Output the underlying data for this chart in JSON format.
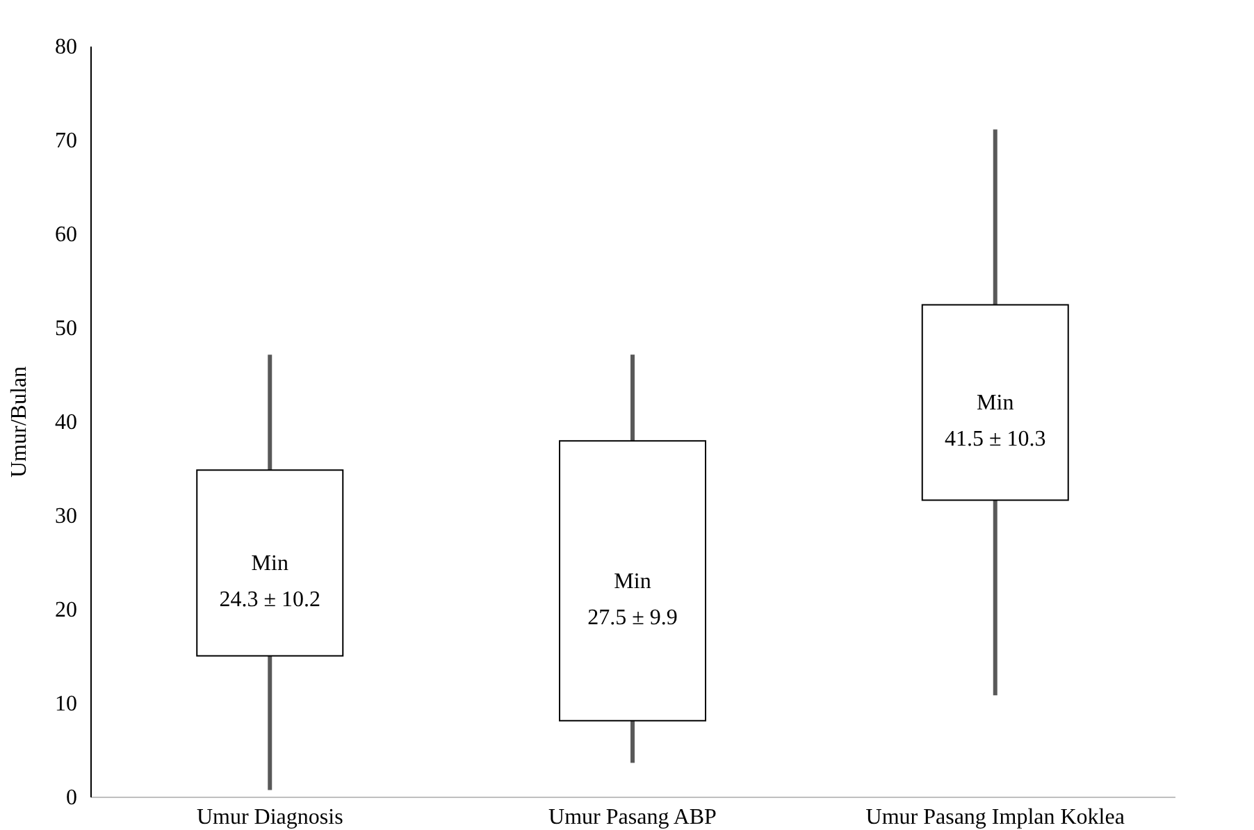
{
  "chart_data": {
    "type": "candlestick",
    "ylabel": "Umur/Bulan",
    "categories": [
      "Umur Diagnosis",
      "Umur Pasang ABP",
      "Umur Pasang Implan Koklea"
    ],
    "ohlc": [
      [
        15.0,
        47.1,
        0.7,
        34.8
      ],
      [
        8.1,
        47.1,
        3.6,
        37.9
      ],
      [
        31.6,
        71.1,
        10.8,
        52.4
      ]
    ],
    "colors": [
      "#ffffff",
      "#ffffff",
      "#ffffff"
    ],
    "ylim": [
      0,
      80
    ],
    "yticks": [
      0,
      10,
      20,
      30,
      40,
      50,
      60,
      70,
      80
    ],
    "grid": false,
    "annotations": [
      "Min\n24.3 ± 10.2",
      "Min\n27.5 ± 9.9",
      "Min\n41.5 ± 10.3"
    ]
  }
}
